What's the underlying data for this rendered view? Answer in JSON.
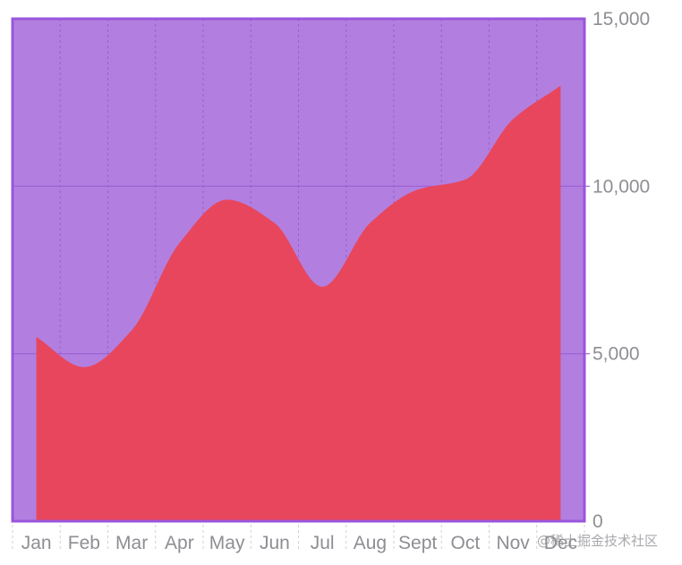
{
  "chart_data": {
    "type": "area",
    "categories": [
      "Jan",
      "Feb",
      "Mar",
      "Apr",
      "May",
      "Jun",
      "Jul",
      "Aug",
      "Sept",
      "Oct",
      "Nov",
      "Dec"
    ],
    "series": [
      {
        "values": [
          5500,
          4600,
          5700,
          8300,
          9600,
          8900,
          7000,
          8900,
          9900,
          10200,
          12000,
          13000
        ]
      }
    ],
    "ylim": [
      0,
      15000
    ],
    "yticks": [
      0,
      5000,
      10000,
      15000
    ],
    "ytick_labels": [
      "0",
      "5,000",
      "10,000",
      "15,000"
    ],
    "y_axis_position": "right",
    "grid": true,
    "colors": {
      "plot_background": "#b27fe0",
      "area_fill": "#e8465d",
      "plot_border": "#9a55dc",
      "gridline": "#9a5fd4",
      "tick_label": "#8e8e93"
    }
  },
  "watermark": "@稀土掘金技术社区"
}
